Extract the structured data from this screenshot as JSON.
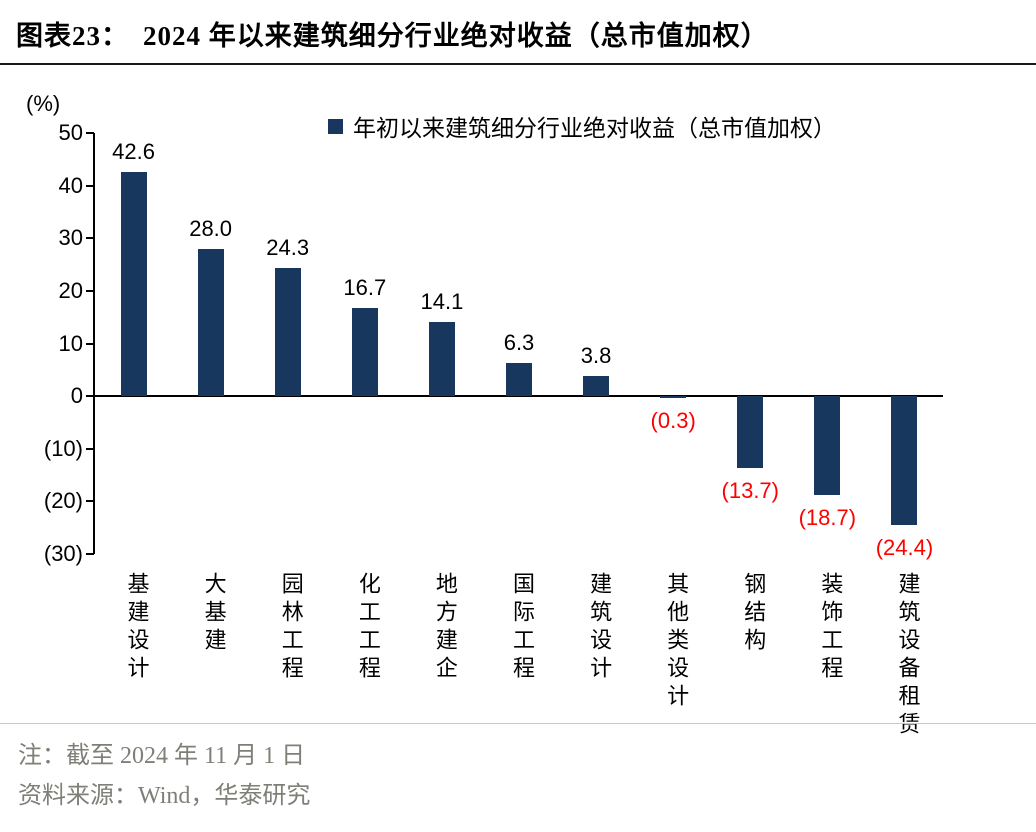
{
  "header": {
    "figure_label": "图表23：",
    "title": "2024 年以来建筑细分行业绝对收益（总市值加权）"
  },
  "chart_data": {
    "type": "bar",
    "title": "2024 年以来建筑细分行业绝对收益（总市值加权）",
    "legend": "年初以来建筑细分行业绝对收益（总市值加权）",
    "unit_label": "(%)",
    "categories": [
      "基建设计",
      "大基建",
      "园林工程",
      "化工工程",
      "地方建企",
      "国际工程",
      "建筑设计",
      "其他类设计",
      "钢结构",
      "装饰工程",
      "建筑设备租赁"
    ],
    "values": [
      42.6,
      28.0,
      24.3,
      16.7,
      14.1,
      6.3,
      3.8,
      -0.3,
      -13.7,
      -18.7,
      -24.4
    ],
    "value_labels": [
      "42.6",
      "28.0",
      "24.3",
      "16.7",
      "14.1",
      "6.3",
      "3.8",
      "(0.3)",
      "(13.7)",
      "(18.7)",
      "(24.4)"
    ],
    "y_ticks": [
      50,
      40,
      30,
      20,
      10,
      0,
      -10,
      -20,
      -30
    ],
    "y_tick_labels": [
      "50",
      "40",
      "30",
      "20",
      "10",
      "0",
      "(10)",
      "(20)",
      "(30)"
    ],
    "ylim": [
      -30,
      50
    ],
    "grid": false,
    "legend_position": "top",
    "bar_color": "#17375e",
    "positive_label_color": "#000000",
    "negative_label_color": "#ff0000"
  },
  "footer": {
    "note": "注：截至 2024 年 11 月 1 日",
    "source": "资料来源：Wind，华泰研究"
  }
}
